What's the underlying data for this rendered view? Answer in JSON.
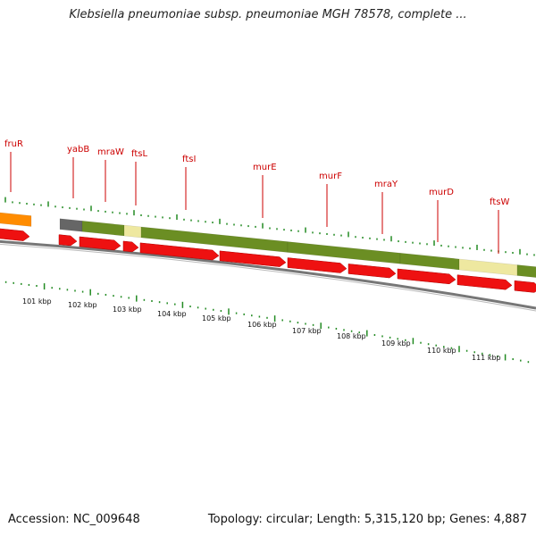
{
  "title": "Klebsiella pneumoniae subsp. pneumoniae MGH 78578, complete ...",
  "footer": {
    "accession": "Accession: NC_009648",
    "summary": "Topology: circular; Length: 5,315,120 bp; Genes: 4,887"
  },
  "colors": {
    "cds_arrow": "#ee1111",
    "gene_green": "#6b8e23",
    "gene_pale": "#eee8a0",
    "gene_orange": "#ff8c00",
    "gene_gray": "#666666",
    "backbone": "#7f7f7f",
    "tick": "#228b22",
    "label": "#cc0000"
  },
  "gene_labels": [
    {
      "id": "fruR",
      "name": "fruR"
    },
    {
      "id": "yabB",
      "name": "yabB"
    },
    {
      "id": "mraW",
      "name": "mraW"
    },
    {
      "id": "ftsL",
      "name": "ftsL"
    },
    {
      "id": "ftsI",
      "name": "ftsI"
    },
    {
      "id": "murE",
      "name": "murE"
    },
    {
      "id": "murF",
      "name": "murF"
    },
    {
      "id": "mraY",
      "name": "mraY"
    },
    {
      "id": "murD",
      "name": "murD"
    },
    {
      "id": "ftsW",
      "name": "ftsW"
    }
  ],
  "kbp_labels": [
    "101 kbp",
    "102 kbp",
    "103 kbp",
    "104 kbp",
    "105 kbp",
    "106 kbp",
    "107 kbp",
    "108 kbp",
    "109 kbp",
    "110 kbp",
    "111 kbp"
  ]
}
